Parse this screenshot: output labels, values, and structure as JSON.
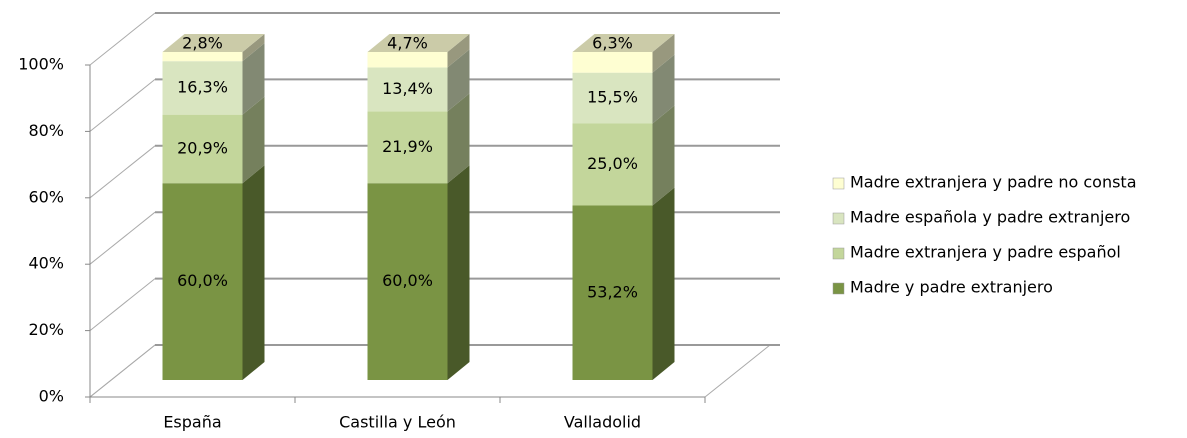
{
  "chart_data": {
    "type": "bar3d_stacked",
    "categories": [
      "España",
      "Castilla y León",
      "Valladolid"
    ],
    "series": [
      {
        "name": "Madre y padre extranjero",
        "color": "#7a9444",
        "values": [
          60.0,
          60.0,
          53.2
        ],
        "value_labels": [
          "60,0%",
          "60,0%",
          "53,2%"
        ]
      },
      {
        "name": "Madre extranjera y padre español",
        "color": "#c3d69b",
        "values": [
          20.9,
          21.9,
          25.0
        ],
        "value_labels": [
          "20,9%",
          "21,9%",
          "25,0%"
        ]
      },
      {
        "name": "Madre española y padre extranjero",
        "color": "#d9e5c0",
        "values": [
          16.3,
          13.4,
          15.5
        ],
        "value_labels": [
          "16,3%",
          "13,4%",
          "15,5%"
        ]
      },
      {
        "name": "Madre extranjera y padre no consta",
        "color": "#fefed2",
        "values": [
          2.8,
          4.7,
          6.3
        ],
        "value_labels": [
          "2,8%",
          "4,7%",
          "6,3%"
        ]
      }
    ],
    "ylim": [
      0,
      100
    ],
    "yticks": [
      {
        "value": 0,
        "label": "0%"
      },
      {
        "value": 20,
        "label": "20%"
      },
      {
        "value": 40,
        "label": "40%"
      },
      {
        "value": 60,
        "label": "60%"
      },
      {
        "value": 80,
        "label": "80%"
      },
      {
        "value": 100,
        "label": "100%"
      }
    ],
    "grid": true,
    "legend": "right"
  }
}
